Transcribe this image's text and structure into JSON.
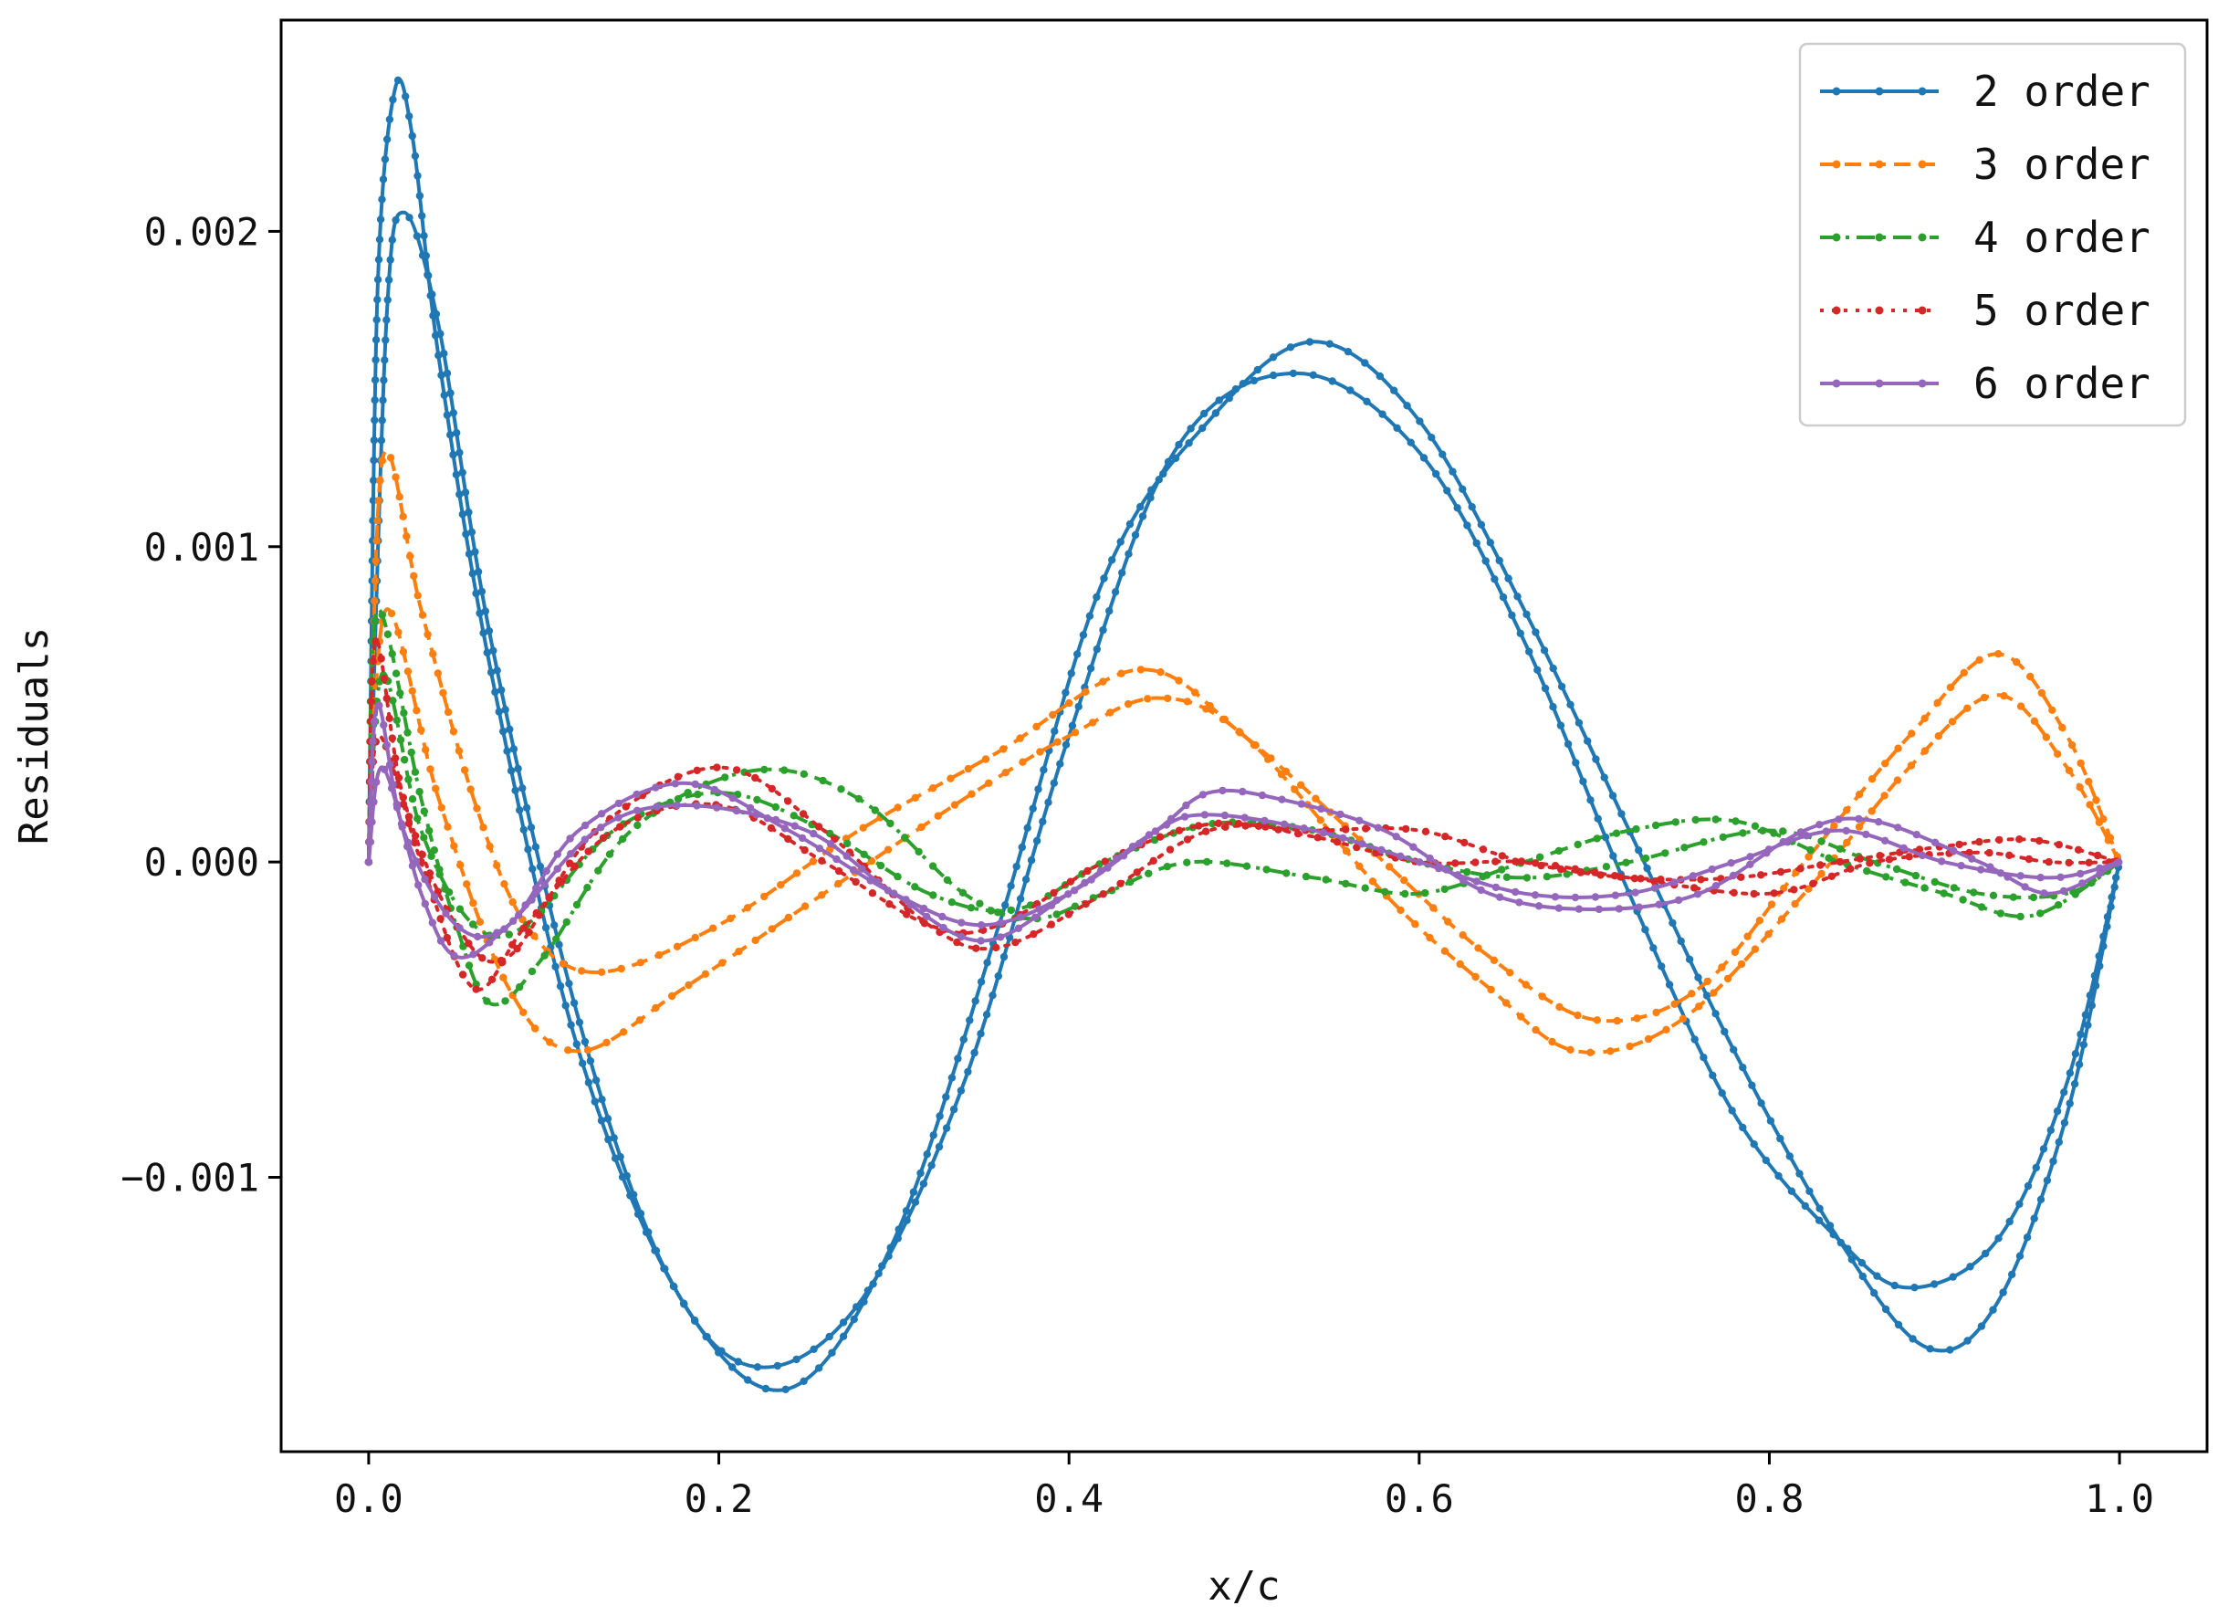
{
  "chart_data": {
    "type": "line",
    "title": "",
    "xlabel": "x/c",
    "ylabel": "Residuals",
    "xlim": [
      -0.05,
      1.05
    ],
    "ylim": [
      -0.00187,
      0.00267
    ],
    "xticks": [
      0.0,
      0.2,
      0.4,
      0.6,
      0.8,
      1.0
    ],
    "xtick_labels": [
      "0.0",
      "0.2",
      "0.4",
      "0.6",
      "0.8",
      "1.0"
    ],
    "yticks": [
      -0.001,
      0.0,
      0.001,
      0.002
    ],
    "ytick_labels": [
      "−0.001",
      "0.000",
      "0.001",
      "0.002"
    ],
    "grid": false,
    "legend_position": "top-right",
    "series": [
      {
        "name": "2 order",
        "color": "#1f77b4",
        "linestyle": "solid",
        "curves": [
          [
            [
              0,
              0
            ],
            [
              0.005,
              0.0018
            ],
            [
              0.015,
              0.00245
            ],
            [
              0.025,
              0.0023
            ],
            [
              0.04,
              0.0016
            ],
            [
              0.07,
              0.0006
            ],
            [
              0.12,
              -0.0006
            ],
            [
              0.18,
              -0.0014
            ],
            [
              0.24,
              -0.00167
            ],
            [
              0.3,
              -0.0012
            ],
            [
              0.36,
              -0.0002
            ],
            [
              0.42,
              0.0009
            ],
            [
              0.48,
              0.0014
            ],
            [
              0.54,
              0.00165
            ],
            [
              0.6,
              0.0014
            ],
            [
              0.66,
              0.0008
            ],
            [
              0.72,
              0.0001
            ],
            [
              0.78,
              -0.0006
            ],
            [
              0.84,
              -0.0012
            ],
            [
              0.89,
              -0.00154
            ],
            [
              0.93,
              -0.0014
            ],
            [
              0.97,
              -0.0008
            ],
            [
              1.0,
              0
            ]
          ],
          [
            [
              0,
              0
            ],
            [
              0.01,
              0.0017
            ],
            [
              0.02,
              0.00206
            ],
            [
              0.04,
              0.0017
            ],
            [
              0.07,
              0.0007
            ],
            [
              0.12,
              -0.0005
            ],
            [
              0.17,
              -0.0013
            ],
            [
              0.22,
              -0.0016
            ],
            [
              0.28,
              -0.0014
            ],
            [
              0.34,
              -0.0007
            ],
            [
              0.4,
              0.0004
            ],
            [
              0.46,
              0.0013
            ],
            [
              0.53,
              0.00155
            ],
            [
              0.6,
              0.0013
            ],
            [
              0.66,
              0.0007
            ],
            [
              0.72,
              -0.0001
            ],
            [
              0.78,
              -0.0008
            ],
            [
              0.84,
              -0.0012
            ],
            [
              0.88,
              -0.00135
            ],
            [
              0.93,
              -0.0012
            ],
            [
              0.97,
              -0.0007
            ],
            [
              1.0,
              0
            ]
          ]
        ]
      },
      {
        "name": "3 order",
        "color": "#ff7f0e",
        "linestyle": "dashed",
        "curves": [
          [
            [
              0,
              0
            ],
            [
              0.008,
              0.00128
            ],
            [
              0.03,
              0.0008
            ],
            [
              0.06,
              0.0002
            ],
            [
              0.09,
              -0.0002
            ],
            [
              0.13,
              -0.00035
            ],
            [
              0.2,
              -0.0002
            ],
            [
              0.28,
              0.0001
            ],
            [
              0.36,
              0.00035
            ],
            [
              0.44,
              0.00061
            ],
            [
              0.5,
              0.0004
            ],
            [
              0.58,
              0.0
            ],
            [
              0.64,
              -0.0003
            ],
            [
              0.7,
              -0.0005
            ],
            [
              0.76,
              -0.0004
            ],
            [
              0.82,
              0.0
            ],
            [
              0.88,
              0.0004
            ],
            [
              0.93,
              0.00066
            ],
            [
              0.97,
              0.0004
            ],
            [
              1.0,
              0
            ]
          ],
          [
            [
              0,
              0
            ],
            [
              0.01,
              0.0008
            ],
            [
              0.04,
              0.0002
            ],
            [
              0.08,
              -0.0004
            ],
            [
              0.12,
              -0.0006
            ],
            [
              0.18,
              -0.0004
            ],
            [
              0.26,
              -0.0001
            ],
            [
              0.34,
              0.0002
            ],
            [
              0.4,
              0.0004
            ],
            [
              0.45,
              0.00052
            ],
            [
              0.5,
              0.0004
            ],
            [
              0.58,
              -0.0001
            ],
            [
              0.64,
              -0.0004
            ],
            [
              0.69,
              -0.0006
            ],
            [
              0.75,
              -0.0005
            ],
            [
              0.82,
              -0.0001
            ],
            [
              0.88,
              0.0003
            ],
            [
              0.93,
              0.00053
            ],
            [
              0.97,
              0.0003
            ],
            [
              1.0,
              0
            ]
          ]
        ]
      },
      {
        "name": "4 order",
        "color": "#2ca02c",
        "linestyle": "dashdot",
        "curves": [
          [
            [
              0,
              0
            ],
            [
              0.005,
              0.0008
            ],
            [
              0.03,
              0.0002
            ],
            [
              0.05,
              -0.0002
            ],
            [
              0.07,
              -0.00045
            ],
            [
              0.1,
              -0.0003
            ],
            [
              0.15,
              0.0001
            ],
            [
              0.22,
              0.00029
            ],
            [
              0.28,
              0.0002
            ],
            [
              0.34,
              -0.0001
            ],
            [
              0.38,
              -0.00018
            ],
            [
              0.42,
              -0.0001
            ],
            [
              0.47,
              0.0
            ],
            [
              0.54,
              -5e-05
            ],
            [
              0.6,
              -0.0001
            ],
            [
              0.66,
              0.0
            ],
            [
              0.72,
              0.0001
            ],
            [
              0.78,
              0.00013
            ],
            [
              0.84,
              0.0
            ],
            [
              0.9,
              -0.0001
            ],
            [
              0.95,
              -0.00017
            ],
            [
              1.0,
              0
            ]
          ],
          [
            [
              0,
              0
            ],
            [
              0.008,
              0.0006
            ],
            [
              0.03,
              0.0001
            ],
            [
              0.06,
              -0.0002
            ],
            [
              0.09,
              -0.0002
            ],
            [
              0.14,
              0.0001
            ],
            [
              0.2,
              0.00022
            ],
            [
              0.26,
              0.0001
            ],
            [
              0.32,
              -0.0001
            ],
            [
              0.37,
              -0.00015
            ],
            [
              0.42,
              0.0
            ],
            [
              0.48,
              0.00012
            ],
            [
              0.54,
              0.0001
            ],
            [
              0.6,
              0.0
            ],
            [
              0.66,
              -5e-05
            ],
            [
              0.72,
              0.0
            ],
            [
              0.8,
              0.0001
            ],
            [
              0.86,
              0.0
            ],
            [
              0.92,
              -0.0001
            ],
            [
              0.97,
              -0.0001
            ],
            [
              1.0,
              0
            ]
          ]
        ]
      },
      {
        "name": "5 order",
        "color": "#d62728",
        "linestyle": "dotted",
        "curves": [
          [
            [
              0,
              0
            ],
            [
              0.004,
              0.0007
            ],
            [
              0.02,
              0.0002
            ],
            [
              0.05,
              -0.0002
            ],
            [
              0.08,
              -0.0003
            ],
            [
              0.13,
              0.0001
            ],
            [
              0.2,
              0.0003
            ],
            [
              0.26,
              0.0001
            ],
            [
              0.32,
              -0.0002
            ],
            [
              0.36,
              -0.00027
            ],
            [
              0.42,
              -0.0001
            ],
            [
              0.48,
              0.0001
            ],
            [
              0.54,
              0.0001
            ],
            [
              0.6,
              0.0001
            ],
            [
              0.66,
              0.0
            ],
            [
              0.72,
              -5e-05
            ],
            [
              0.78,
              -5e-05
            ],
            [
              0.84,
              0.0
            ],
            [
              0.9,
              5e-05
            ],
            [
              0.95,
              7e-05
            ],
            [
              1.0,
              0
            ]
          ],
          [
            [
              0,
              0
            ],
            [
              0.006,
              0.0004
            ],
            [
              0.03,
              0.0
            ],
            [
              0.06,
              -0.0004
            ],
            [
              0.09,
              -0.0002
            ],
            [
              0.14,
              0.0001
            ],
            [
              0.2,
              0.00018
            ],
            [
              0.26,
              0.0
            ],
            [
              0.32,
              -0.0002
            ],
            [
              0.36,
              -0.0002
            ],
            [
              0.42,
              0.0
            ],
            [
              0.48,
              0.00012
            ],
            [
              0.54,
              8e-05
            ],
            [
              0.6,
              0.0
            ],
            [
              0.66,
              0.0
            ],
            [
              0.72,
              -5e-05
            ],
            [
              0.8,
              -0.0001
            ],
            [
              0.86,
              0.0
            ],
            [
              0.92,
              3e-05
            ],
            [
              0.96,
              0.0
            ],
            [
              1.0,
              0
            ]
          ]
        ]
      },
      {
        "name": "6 order",
        "color": "#9467bd",
        "linestyle": "solid",
        "curves": [
          [
            [
              0,
              0
            ],
            [
              0.005,
              0.0005
            ],
            [
              0.02,
              0.0001
            ],
            [
              0.05,
              -0.0002
            ],
            [
              0.08,
              -0.0002
            ],
            [
              0.12,
              0.0001
            ],
            [
              0.18,
              0.00025
            ],
            [
              0.24,
              0.0001
            ],
            [
              0.3,
              -0.0001
            ],
            [
              0.35,
              -0.0002
            ],
            [
              0.4,
              -0.0001
            ],
            [
              0.45,
              0.0001
            ],
            [
              0.48,
              0.00022
            ],
            [
              0.52,
              0.0002
            ],
            [
              0.58,
              0.0001
            ],
            [
              0.64,
              -0.0001
            ],
            [
              0.7,
              -0.00015
            ],
            [
              0.76,
              -0.0001
            ],
            [
              0.82,
              0.0001
            ],
            [
              0.86,
              0.00013
            ],
            [
              0.92,
              0.0
            ],
            [
              0.96,
              -0.0001
            ],
            [
              1.0,
              0
            ]
          ],
          [
            [
              0,
              0
            ],
            [
              0.008,
              0.0003
            ],
            [
              0.03,
              -0.0001
            ],
            [
              0.05,
              -0.0003
            ],
            [
              0.08,
              -0.0002
            ],
            [
              0.13,
              0.0001
            ],
            [
              0.18,
              0.00018
            ],
            [
              0.25,
              0.0001
            ],
            [
              0.3,
              -0.0001
            ],
            [
              0.35,
              -0.00025
            ],
            [
              0.4,
              -0.0001
            ],
            [
              0.45,
              0.0001
            ],
            [
              0.48,
              0.00015
            ],
            [
              0.54,
              0.0001
            ],
            [
              0.6,
              0.0
            ],
            [
              0.66,
              -0.0001
            ],
            [
              0.72,
              -0.0001
            ],
            [
              0.78,
              0.0
            ],
            [
              0.84,
              0.0001
            ],
            [
              0.9,
              0.0
            ],
            [
              0.96,
              -5e-05
            ],
            [
              1.0,
              0
            ]
          ]
        ]
      }
    ]
  }
}
